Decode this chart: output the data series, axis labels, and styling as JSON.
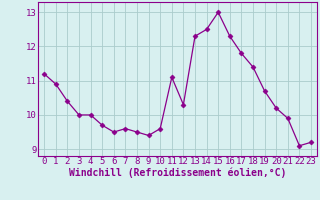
{
  "x": [
    0,
    1,
    2,
    3,
    4,
    5,
    6,
    7,
    8,
    9,
    10,
    11,
    12,
    13,
    14,
    15,
    16,
    17,
    18,
    19,
    20,
    21,
    22,
    23
  ],
  "y": [
    11.2,
    10.9,
    10.4,
    10.0,
    10.0,
    9.7,
    9.5,
    9.6,
    9.5,
    9.4,
    9.6,
    11.1,
    10.3,
    12.3,
    12.5,
    13.0,
    12.3,
    11.8,
    11.4,
    10.7,
    10.2,
    9.9,
    9.1,
    9.2
  ],
  "line_color": "#8B008B",
  "marker": "D",
  "marker_size": 2.5,
  "bg_color": "#d8f0f0",
  "grid_color": "#aacccc",
  "xlabel": "Windchill (Refroidissement éolien,°C)",
  "xlabel_fontsize": 7,
  "tick_fontsize": 6.5,
  "ylim": [
    8.8,
    13.3
  ],
  "yticks": [
    9,
    10,
    11,
    12,
    13
  ],
  "xticks": [
    0,
    1,
    2,
    3,
    4,
    5,
    6,
    7,
    8,
    9,
    10,
    11,
    12,
    13,
    14,
    15,
    16,
    17,
    18,
    19,
    20,
    21,
    22,
    23
  ],
  "tick_color": "#8B008B",
  "spine_color": "#8B008B"
}
